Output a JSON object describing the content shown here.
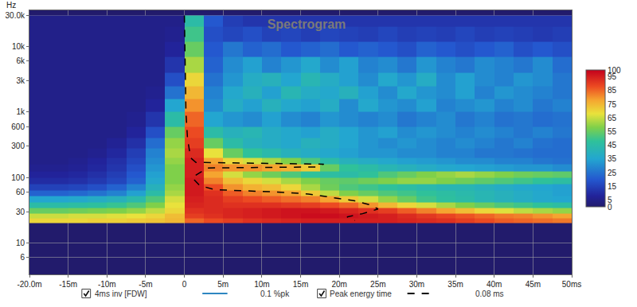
{
  "chart_data": {
    "type": "heatmap",
    "title": "Spectrogram",
    "y_label": "Hz",
    "log": "y",
    "grid": true,
    "xlim": [
      -20,
      50
    ],
    "xticks": [
      {
        "value": -20,
        "label": "-20.0m"
      },
      {
        "value": -15,
        "label": "-15m"
      },
      {
        "value": -10,
        "label": "-10m"
      },
      {
        "value": -5,
        "label": "-5m"
      },
      0,
      {
        "value": 5,
        "label": "5m"
      },
      {
        "value": 10,
        "label": "10m"
      },
      {
        "value": 15,
        "label": "15m"
      },
      {
        "value": 20,
        "label": "20m"
      },
      {
        "value": 25,
        "label": "25m"
      },
      {
        "value": 30,
        "label": "30m"
      },
      {
        "value": 35,
        "label": "35m"
      },
      {
        "value": 40,
        "label": "40m"
      },
      {
        "value": 45,
        "label": "45m"
      },
      {
        "value": 50,
        "label": "50ms"
      }
    ],
    "ylim": [
      3.3,
      36000
    ],
    "yticks": [
      6,
      10,
      30,
      60,
      100,
      300,
      600,
      {
        "value": 1000,
        "label": "1k"
      },
      {
        "value": 3000,
        "label": "3k"
      },
      {
        "value": 6000,
        "label": "6k"
      },
      {
        "value": 10000,
        "label": "10k"
      },
      {
        "value": 30000,
        "label": "30.0k"
      }
    ],
    "zlim": [
      0,
      100
    ],
    "zticks": [
      0,
      5,
      15,
      25,
      35,
      45,
      55,
      65,
      75,
      85,
      95,
      100
    ],
    "x_edges": [
      -20,
      -17.5,
      -15,
      -12.5,
      -10,
      -7.5,
      -5,
      -2.5,
      0,
      2.5,
      5,
      7.5,
      10,
      12.5,
      15,
      17.5,
      20,
      22.5,
      25,
      27.5,
      30,
      32.5,
      35,
      37.5,
      40,
      42.5,
      45,
      47.5,
      50
    ],
    "y_edges": [
      20,
      24,
      28,
      34,
      42,
      52,
      64,
      80,
      100,
      125,
      160,
      200,
      280,
      400,
      600,
      1000,
      1600,
      2500,
      4000,
      7000,
      12000,
      20000,
      30000
    ],
    "cells": [
      [
        70,
        70,
        70,
        71,
        71,
        72,
        73,
        75,
        85,
        88,
        90,
        92,
        93,
        94,
        95,
        95,
        95,
        95,
        95,
        94,
        93,
        92,
        90,
        88,
        86,
        85,
        84,
        83
      ],
      [
        65,
        65,
        66,
        66,
        67,
        68,
        70,
        74,
        90,
        92,
        94,
        95,
        96,
        97,
        98,
        98,
        97,
        96,
        95,
        93,
        91,
        89,
        87,
        85,
        83,
        82,
        80,
        78
      ],
      [
        55,
        55,
        56,
        57,
        58,
        60,
        64,
        70,
        92,
        93,
        94,
        95,
        96,
        97,
        97,
        96,
        94,
        92,
        90,
        86,
        82,
        78,
        74,
        70,
        67,
        64,
        62,
        60
      ],
      [
        45,
        45,
        46,
        47,
        49,
        52,
        58,
        68,
        94,
        93,
        92,
        92,
        92,
        91,
        90,
        88,
        85,
        80,
        75,
        70,
        66,
        62,
        58,
        55,
        52,
        50,
        48,
        46
      ],
      [
        35,
        35,
        36,
        38,
        40,
        44,
        52,
        66,
        95,
        93,
        90,
        88,
        86,
        84,
        82,
        78,
        72,
        66,
        60,
        55,
        50,
        47,
        45,
        42,
        40,
        38,
        36,
        35
      ],
      [
        22,
        22,
        23,
        25,
        28,
        34,
        45,
        62,
        96,
        92,
        86,
        82,
        80,
        78,
        72,
        64,
        58,
        55,
        52,
        50,
        48,
        46,
        44,
        42,
        40,
        38,
        36,
        34
      ],
      [
        15,
        15,
        16,
        18,
        22,
        28,
        40,
        60,
        96,
        88,
        80,
        76,
        74,
        70,
        62,
        56,
        52,
        50,
        48,
        46,
        44,
        42,
        42,
        40,
        38,
        36,
        35,
        34
      ],
      [
        10,
        10,
        11,
        13,
        16,
        22,
        36,
        58,
        96,
        82,
        74,
        70,
        66,
        62,
        58,
        55,
        54,
        56,
        58,
        60,
        60,
        58,
        56,
        54,
        52,
        50,
        48,
        46
      ],
      [
        8,
        8,
        9,
        11,
        14,
        20,
        34,
        58,
        95,
        78,
        66,
        60,
        56,
        52,
        48,
        46,
        45,
        48,
        52,
        55,
        58,
        60,
        62,
        60,
        58,
        56,
        55,
        54
      ],
      [
        6,
        6,
        7,
        9,
        12,
        18,
        32,
        58,
        95,
        82,
        80,
        80,
        78,
        76,
        72,
        55,
        48,
        45,
        42,
        40,
        38,
        36,
        35,
        34,
        33,
        32,
        32,
        30
      ],
      [
        5,
        5,
        6,
        8,
        11,
        16,
        30,
        60,
        95,
        78,
        70,
        66,
        62,
        58,
        52,
        45,
        40,
        38,
        36,
        34,
        33,
        32,
        30,
        30,
        28,
        28,
        26,
        25
      ],
      [
        5,
        5,
        5,
        6,
        9,
        14,
        28,
        62,
        93,
        68,
        55,
        48,
        44,
        40,
        38,
        36,
        34,
        32,
        32,
        30,
        30,
        28,
        28,
        26,
        26,
        25,
        24,
        24
      ],
      [
        5,
        5,
        5,
        5,
        7,
        11,
        24,
        60,
        90,
        55,
        45,
        40,
        38,
        36,
        40,
        38,
        35,
        32,
        30,
        32,
        30,
        28,
        30,
        28,
        26,
        28,
        25,
        24
      ],
      [
        5,
        5,
        5,
        5,
        5,
        8,
        18,
        55,
        88,
        45,
        40,
        42,
        38,
        36,
        34,
        38,
        35,
        32,
        34,
        30,
        32,
        30,
        28,
        30,
        28,
        26,
        28,
        26
      ],
      [
        5,
        5,
        5,
        5,
        5,
        6,
        12,
        45,
        85,
        35,
        32,
        30,
        34,
        30,
        28,
        32,
        30,
        28,
        30,
        26,
        28,
        30,
        26,
        28,
        25,
        26,
        24,
        25
      ],
      [
        5,
        5,
        5,
        5,
        5,
        5,
        8,
        35,
        80,
        30,
        38,
        34,
        40,
        36,
        34,
        38,
        30,
        36,
        32,
        30,
        34,
        28,
        30,
        32,
        28,
        30,
        26,
        28
      ],
      [
        5,
        5,
        5,
        5,
        5,
        5,
        6,
        25,
        75,
        28,
        36,
        40,
        34,
        42,
        38,
        36,
        40,
        34,
        30,
        36,
        32,
        30,
        34,
        28,
        32,
        30,
        28,
        26
      ],
      [
        5,
        5,
        5,
        5,
        5,
        5,
        5,
        18,
        70,
        25,
        32,
        38,
        40,
        35,
        42,
        38,
        34,
        30,
        36,
        32,
        38,
        30,
        34,
        30,
        28,
        32,
        30,
        26
      ],
      [
        5,
        5,
        5,
        5,
        5,
        5,
        5,
        12,
        62,
        22,
        30,
        34,
        28,
        32,
        36,
        30,
        34,
        28,
        30,
        26,
        32,
        28,
        26,
        30,
        28,
        26,
        30,
        24
      ],
      [
        5,
        5,
        5,
        5,
        5,
        5,
        5,
        8,
        55,
        20,
        26,
        22,
        24,
        20,
        22,
        24,
        20,
        22,
        20,
        18,
        22,
        20,
        18,
        20,
        22,
        18,
        20,
        18
      ],
      [
        5,
        5,
        5,
        5,
        5,
        5,
        5,
        6,
        50,
        18,
        16,
        18,
        15,
        16,
        14,
        16,
        15,
        14,
        16,
        14,
        15,
        14,
        16,
        14,
        15,
        14,
        13,
        14
      ],
      [
        5,
        5,
        5,
        5,
        5,
        5,
        5,
        5,
        45,
        20,
        14,
        12,
        12,
        12,
        12,
        12,
        12,
        12,
        12,
        12,
        12,
        12,
        12,
        12,
        12,
        12,
        12,
        12
      ]
    ],
    "series": [
      {
        "name": "Peak energy time",
        "type": "line",
        "color": "#000000",
        "line_style": "dash",
        "x": [
          0,
          0.1,
          0.2,
          0.4,
          0.8,
          1.5,
          18,
          17,
          3,
          1,
          2,
          4,
          8,
          12,
          16,
          19,
          22,
          24,
          25,
          23,
          21,
          22
        ],
        "y": [
          30000,
          3000,
          1000,
          400,
          200,
          170,
          160,
          145,
          140,
          100,
          75,
          65,
          62,
          60,
          56,
          50,
          44,
          38,
          33,
          28,
          25,
          22
        ]
      }
    ],
    "legend_entries": [
      {
        "name": "4ms inv [FDW]",
        "color": "#2e86c1",
        "line_style": "solid",
        "text": "0.1 %pk"
      },
      {
        "name": "Peak energy time",
        "color": "#000000",
        "line_style": "dash",
        "text": "0.08 ms"
      }
    ]
  }
}
